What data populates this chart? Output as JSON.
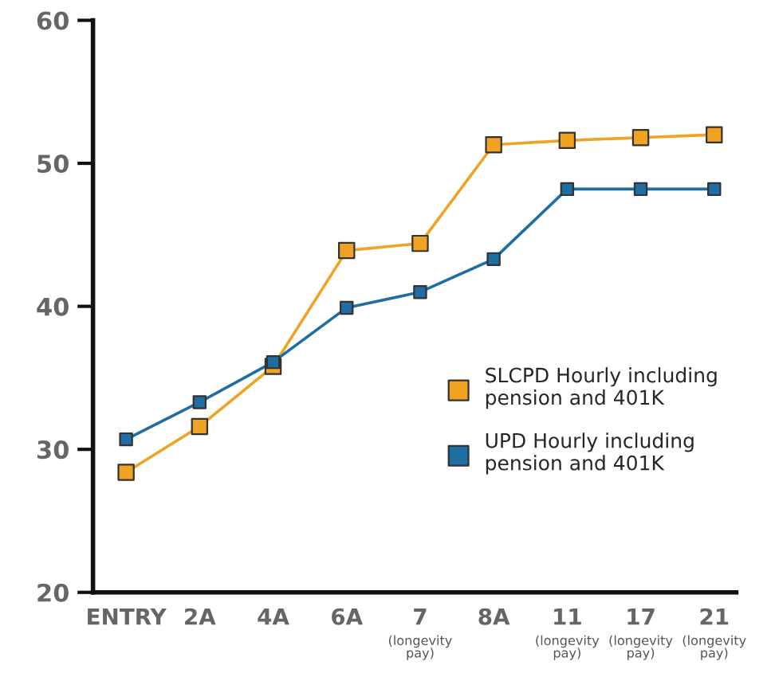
{
  "chart_data": {
    "type": "line",
    "categories": [
      "ENTRY",
      "2A",
      "4A",
      "6A",
      "7\n(longevity\npay)",
      "8A",
      "11\n(longevity\npay)",
      "17\n(longevity\npay)",
      "21\n(longevity\npay)"
    ],
    "series": [
      {
        "name": "SLCPD Hourly including\npension and 401K",
        "color": "#f0a323",
        "values": [
          28.4,
          31.6,
          35.8,
          43.9,
          44.4,
          51.3,
          51.6,
          51.8,
          52.0
        ]
      },
      {
        "name": "UPD Hourly including\npension and 401K",
        "color": "#1f6ea3",
        "values": [
          30.7,
          33.3,
          36.1,
          39.9,
          41.0,
          43.3,
          48.2,
          48.2,
          48.2
        ]
      }
    ],
    "ylim": [
      20,
      60
    ],
    "yticks": [
      20,
      30,
      40,
      50,
      60
    ],
    "marker": "square",
    "line_style": "solid",
    "legend": "center right",
    "grid": false
  }
}
